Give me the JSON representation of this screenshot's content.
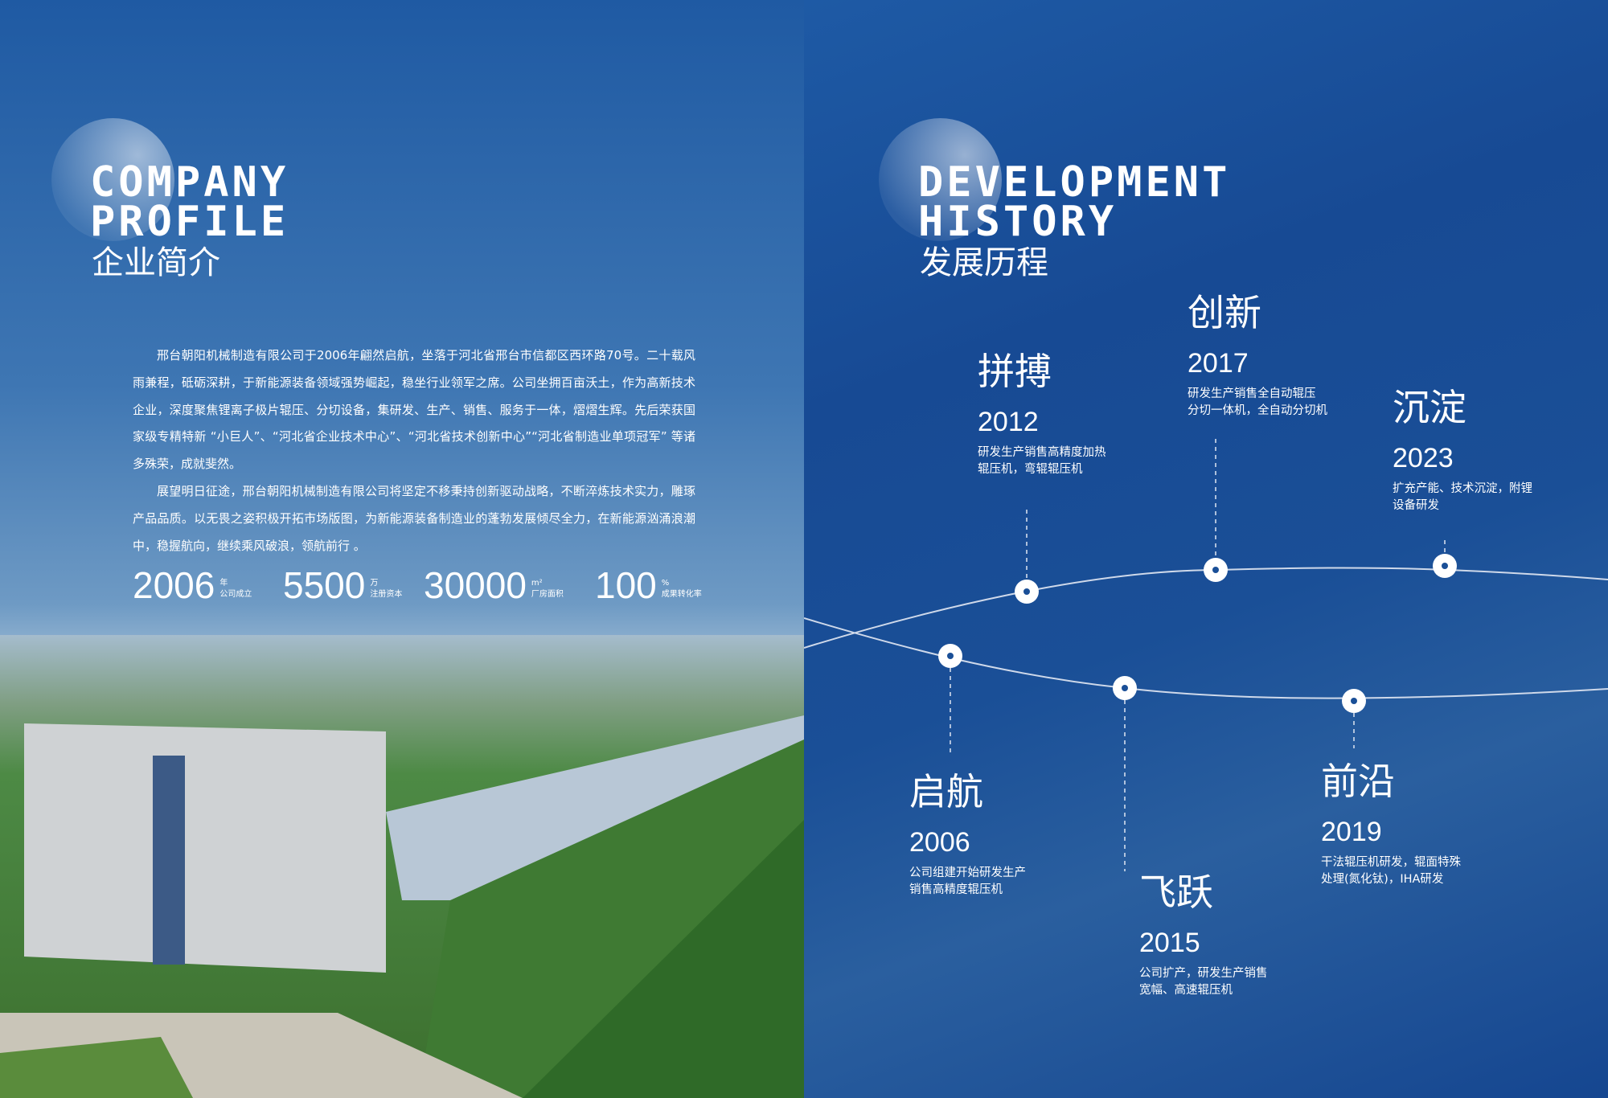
{
  "profile": {
    "title_en_1": "COMPANY",
    "title_en_2": "PROFILE",
    "title_cn": "企业简介",
    "paragraphs": [
      "邢台朝阳机械制造有限公司于2006年翩然启航，坐落于河北省邢台市信都区西环路70号。二十载风雨兼程，砥砺深耕，于新能源装备领域强势崛起，稳坐行业领军之席。公司坐拥百亩沃土，作为高新技术企业，深度聚焦锂离子极片辊压、分切设备，集研发、生产、销售、服务于一体，熠熠生辉。先后荣获国家级专精特新 “小巨人”、“河北省企业技术中心”、“河北省技术创新中心”“河北省制造业单项冠军” 等诸多殊荣，成就斐然。",
      "展望明日征途，邢台朝阳机械制造有限公司将坚定不移秉持创新驱动战略，不断淬炼技术实力，雕琢产品品质。以无畏之姿积极开拓市场版图，为新能源装备制造业的蓬勃发展倾尽全力，在新能源汹涌浪潮中，稳握航向，继续乘风破浪，领航前行 。"
    ],
    "stats": [
      {
        "value": "2006",
        "unit": "年",
        "label": "公司成立"
      },
      {
        "value": "5500",
        "unit": "万",
        "label": "注册资本"
      },
      {
        "value": "30000",
        "unit": "m²",
        "label": "厂房面积"
      },
      {
        "value": "100",
        "unit": "%",
        "label": "成果转化率"
      }
    ]
  },
  "history": {
    "title_en_1": "DEVELOPMENT",
    "title_en_2": "HISTORY",
    "title_cn": "发展历程",
    "items": [
      {
        "word": "启航",
        "year": "2006",
        "desc1": "公司组建开始研发生产",
        "desc2": "销售高精度辊压机"
      },
      {
        "word": "拼搏",
        "year": "2012",
        "desc1": "研发生产销售高精度加热",
        "desc2": "辊压机，弯辊辊压机"
      },
      {
        "word": "飞跃",
        "year": "2015",
        "desc1": "公司扩产，研发生产销售",
        "desc2": "宽幅、高速辊压机"
      },
      {
        "word": "创新",
        "year": "2017",
        "desc1": "研发生产销售全自动辊压",
        "desc2": "分切一体机，全自动分切机"
      },
      {
        "word": "前沿",
        "year": "2019",
        "desc1": "干法辊压机研发，辊面特殊",
        "desc2": "处理(氮化钛)，IHA研发"
      },
      {
        "word": "沉淀",
        "year": "2023",
        "desc1": "扩充产能、技术沉淀，附锂",
        "desc2": "设备研发"
      }
    ]
  }
}
